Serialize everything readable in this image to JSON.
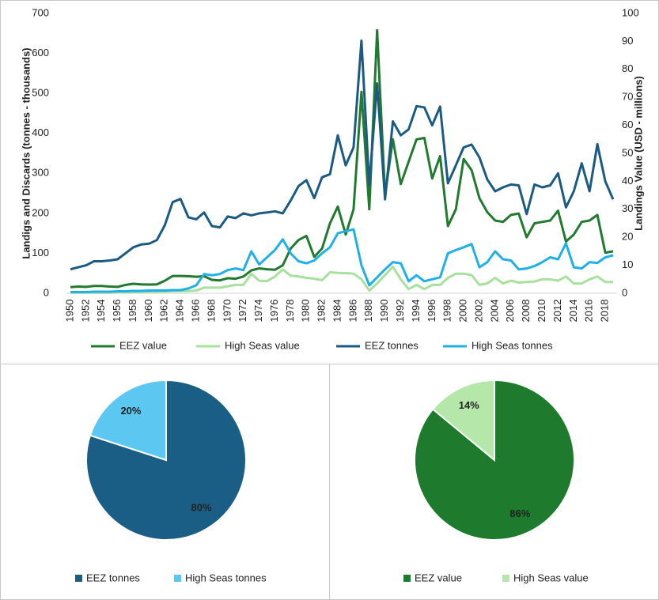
{
  "chart_data": [
    {
      "type": "line",
      "categories": [
        1950,
        null,
        1952,
        null,
        1954,
        null,
        1956,
        null,
        1958,
        null,
        1960,
        null,
        1962,
        null,
        1964,
        null,
        1966,
        null,
        1968,
        null,
        1970,
        null,
        1972,
        null,
        1974,
        null,
        1976,
        null,
        1978,
        null,
        1980,
        null,
        1982,
        null,
        1984,
        null,
        1986,
        null,
        1988,
        null,
        1990,
        null,
        1992,
        null,
        1994,
        null,
        1996,
        null,
        1998,
        null,
        2000,
        null,
        2002,
        null,
        2004,
        null,
        2006,
        null,
        2008,
        null,
        2010,
        null,
        2012,
        null,
        2014,
        null,
        2016,
        null,
        2018,
        null
      ],
      "y_label": "Landigs and Discards (tonnes - thousands)",
      "y2_label": "Landings Value (USD - millions)",
      "ylim": [
        0,
        700
      ],
      "yticks": [
        0,
        100,
        200,
        300,
        400,
        500,
        600,
        700
      ],
      "y2lim": [
        0,
        100
      ],
      "y2ticks": [
        0,
        10,
        20,
        30,
        40,
        50,
        60,
        70,
        80,
        90,
        100
      ],
      "legend": "bottom",
      "series": [
        {
          "name": "EEZ value",
          "color": "#217a2f",
          "axis": "y2",
          "values": [
            2.2,
            2.4,
            2.3,
            2.6,
            2.6,
            2.4,
            2.3,
            3,
            3.4,
            3.2,
            3.1,
            3.2,
            4.5,
            6.2,
            6.2,
            6.1,
            5.9,
            6.1,
            4.8,
            4.6,
            5.4,
            5.2,
            6,
            8.2,
            8.9,
            8.6,
            8.4,
            10,
            16,
            19,
            20.5,
            13,
            16,
            25,
            31,
            21,
            30,
            72,
            30,
            94,
            35,
            55,
            39,
            47,
            55,
            55.5,
            41,
            49,
            24,
            30,
            48,
            44,
            34,
            29,
            26,
            25.5,
            28,
            28.5,
            20,
            25,
            25.5,
            26,
            29.5,
            18.5,
            21,
            25.5,
            26,
            28,
            14.5,
            15
          ]
        },
        {
          "name": "High Seas value",
          "color": "#a8e09e",
          "axis": "y2",
          "values": [
            0.2,
            0.2,
            0.2,
            0.2,
            0.2,
            0.2,
            0.3,
            0.3,
            0.4,
            0.4,
            0.5,
            0.5,
            0.6,
            0.7,
            0.8,
            0.8,
            1,
            2,
            2,
            2,
            2.5,
            3,
            3,
            7,
            4.5,
            4.3,
            6,
            8.5,
            6.3,
            6,
            5.5,
            5.2,
            4.7,
            7.5,
            7.3,
            7.2,
            7,
            5,
            1,
            3.5,
            6.5,
            9.5,
            5,
            1.5,
            3,
            1.5,
            3,
            3,
            5.5,
            7,
            7,
            6.5,
            3,
            3.5,
            5.5,
            3.5,
            4.5,
            3.8,
            4,
            4.2,
            5,
            5,
            4.5,
            6,
            3.5,
            3.5,
            5,
            6,
            4,
            4
          ]
        },
        {
          "name": "EEZ tonnes",
          "color": "#1b5b82",
          "values": [
            60,
            65,
            70,
            80,
            80,
            82,
            85,
            100,
            115,
            122,
            124,
            133,
            170,
            228,
            236,
            190,
            185,
            202,
            168,
            165,
            192,
            188,
            200,
            195,
            200,
            202,
            205,
            200,
            232,
            268,
            283,
            238,
            290,
            298,
            395,
            320,
            365,
            632,
            270,
            525,
            235,
            430,
            395,
            410,
            468,
            465,
            420,
            467,
            275,
            320,
            365,
            372,
            340,
            285,
            255,
            265,
            272,
            270,
            198,
            272,
            265,
            270,
            300,
            215,
            255,
            325,
            255,
            373,
            280,
            235
          ]
        },
        {
          "name": "High Seas tonnes",
          "color": "#1fb0e8",
          "values": [
            3,
            3,
            3,
            4,
            4,
            4,
            5,
            5,
            6,
            6,
            7,
            7,
            7,
            8,
            8,
            12,
            20,
            48,
            45,
            48,
            58,
            62,
            58,
            105,
            72,
            90,
            108,
            135,
            100,
            80,
            75,
            82,
            100,
            115,
            150,
            155,
            160,
            70,
            20,
            40,
            60,
            78,
            75,
            30,
            45,
            30,
            35,
            40,
            100,
            108,
            115,
            123,
            65,
            78,
            105,
            85,
            82,
            60,
            62,
            68,
            78,
            90,
            85,
            125,
            65,
            62,
            78,
            76,
            90,
            95
          ]
        }
      ]
    },
    {
      "type": "pie",
      "categories": [
        "EEZ tonnes",
        "High Seas tonnes"
      ],
      "values": [
        80,
        20
      ],
      "value_labels": [
        "80%",
        "20%"
      ],
      "colors": [
        "#1b5e85",
        "#5cc8f2"
      ],
      "legend": "bottom"
    },
    {
      "type": "pie",
      "categories": [
        "EEZ value",
        "High Seas value"
      ],
      "values": [
        86,
        14
      ],
      "value_labels": [
        "86%",
        "14%"
      ],
      "colors": [
        "#1e7a2c",
        "#b5e6aa"
      ],
      "legend": "bottom"
    }
  ]
}
